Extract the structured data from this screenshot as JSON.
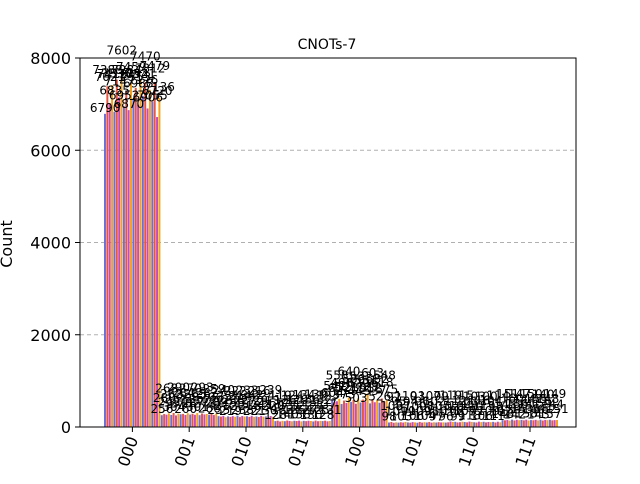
{
  "chart_data": {
    "type": "bar",
    "title": "CNOTs-7",
    "xlabel": "",
    "ylabel": "Count",
    "ylim": [
      0,
      8000
    ],
    "yticks": [
      0,
      2000,
      4000,
      6000,
      8000
    ],
    "grid": "y-dashed",
    "categories": [
      "000",
      "001",
      "010",
      "011",
      "100",
      "101",
      "110",
      "111"
    ],
    "series_palette": [
      "#6c6fd6",
      "#e8563f",
      "#c44bbd",
      "#f6a21a"
    ],
    "series_per_category": 24,
    "series": [
      {
        "values": [
          6790,
          256,
          235,
          128,
          604,
          98,
          96,
          148
        ]
      },
      {
        "values": [
          7388,
          280,
          226,
          137,
          541,
          108,
          102,
          145
        ]
      },
      {
        "values": [
          7021,
          268,
          240,
          119,
          558,
          92,
          119,
          151
        ]
      },
      {
        "values": [
          7412,
          295,
          212,
          133,
          612,
          101,
          108,
          139
        ]
      },
      {
        "values": [
          6835,
          262,
          231,
          126,
          498,
          95,
          112,
          160
        ]
      },
      {
        "values": [
          7530,
          304,
          219,
          140,
          573,
          103,
          99,
          142
        ]
      },
      {
        "values": [
          7147,
          251,
          236,
          131,
          521,
          97,
          104,
          156
        ]
      },
      {
        "values": [
          7602,
          290,
          222,
          124,
          640,
          110,
          115,
          147
        ]
      },
      {
        "values": [
          6952,
          276,
          245,
          135,
          544,
          99,
          107,
          153
        ]
      },
      {
        "values": [
          7284,
          284,
          214,
          129,
          586,
          94,
          101,
          144
        ]
      },
      {
        "values": [
          6870,
          260,
          238,
          138,
          503,
          106,
          118,
          158
        ]
      },
      {
        "values": [
          7459,
          298,
          227,
          122,
          620,
          100,
          110,
          141
        ]
      },
      {
        "values": [
          7094,
          270,
          233,
          134,
          532,
          93,
          103,
          150
        ]
      },
      {
        "values": [
          7353,
          287,
          218,
          127,
          595,
          109,
          97,
          146
        ]
      },
      {
        "values": [
          6988,
          265,
          242,
          136,
          551,
          96,
          116,
          155
        ]
      },
      {
        "values": [
          7521,
          301,
          221,
          130,
          727,
          104,
          106,
          143
        ]
      },
      {
        "values": [
          7176,
          257,
          229,
          121,
          512,
          98,
          113,
          159
        ]
      },
      {
        "values": [
          7470,
          293,
          216,
          139,
          603,
          107,
          100,
          140
        ]
      },
      {
        "values": [
          6906,
          273,
          241,
          125,
          537,
          95,
          109,
          152
        ]
      },
      {
        "values": [
          7312,
          282,
          224,
          132,
          582,
          102,
          104,
          148
        ]
      },
      {
        "values": [
          7055,
          266,
          230,
          128,
          526,
          97,
          111,
          157
        ]
      },
      {
        "values": [
          7479,
          296,
          213,
          137,
          618,
          105,
          98,
          144
        ]
      },
      {
        "values": [
          6720,
          259,
          239,
          123,
          548,
          99,
          114,
          149
        ]
      },
      {
        "values": [
          7136,
          289,
          220,
          131,
          575,
          101,
          102,
          151
        ]
      }
    ]
  }
}
